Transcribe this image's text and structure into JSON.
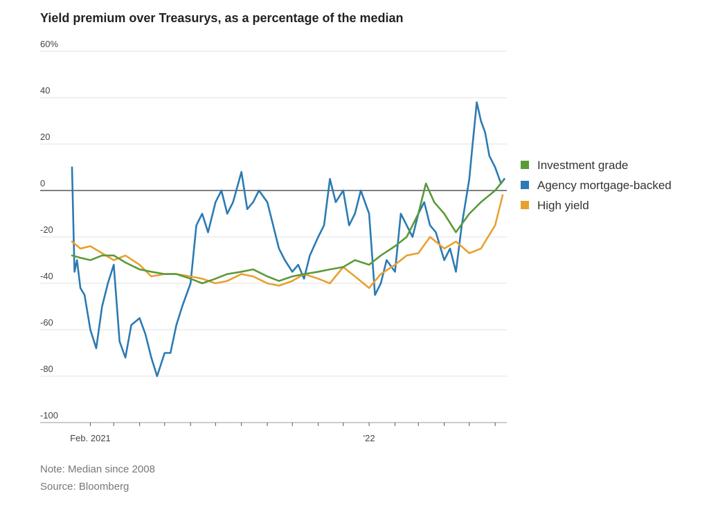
{
  "chart_data": {
    "type": "line",
    "title": "Yield premium over Treasurys, as a percentage of the median",
    "note": "Note: Median since 2008",
    "source": "Source: Bloomberg",
    "ylim": [
      -100,
      60
    ],
    "yticks": [
      {
        "value": 60,
        "label": "60%"
      },
      {
        "value": 40,
        "label": "40"
      },
      {
        "value": 20,
        "label": "20"
      },
      {
        "value": 0,
        "label": "0"
      },
      {
        "value": -20,
        "label": "-20"
      },
      {
        "value": -40,
        "label": "-40"
      },
      {
        "value": -60,
        "label": "-60"
      },
      {
        "value": -80,
        "label": "-80"
      },
      {
        "value": -100,
        "label": "-100"
      }
    ],
    "xlim": [
      "2021-01-10",
      "2022-06-15"
    ],
    "xtick_labels": [
      {
        "date": "2021-02-01",
        "label": "Feb. 2021"
      },
      {
        "date": "2022-01-01",
        "label": "'22"
      }
    ],
    "xtick_marks": [
      "2021-02-01",
      "2021-03-01",
      "2021-04-01",
      "2021-05-01",
      "2021-06-01",
      "2021-07-01",
      "2021-08-01",
      "2021-09-01",
      "2021-10-01",
      "2021-11-01",
      "2021-12-01",
      "2022-01-01",
      "2022-02-01",
      "2022-03-01",
      "2022-04-01",
      "2022-05-01",
      "2022-06-01"
    ],
    "grid": true,
    "legend_position": "right",
    "series": [
      {
        "name": "Investment grade",
        "color": "#5a9a3a",
        "x": [
          "2021-01-10",
          "2021-01-20",
          "2021-02-01",
          "2021-02-15",
          "2021-03-01",
          "2021-03-15",
          "2021-04-01",
          "2021-04-15",
          "2021-05-01",
          "2021-05-15",
          "2021-06-01",
          "2021-06-15",
          "2021-07-01",
          "2021-07-15",
          "2021-08-01",
          "2021-08-15",
          "2021-09-01",
          "2021-09-15",
          "2021-10-01",
          "2021-10-15",
          "2021-11-01",
          "2021-11-15",
          "2021-12-01",
          "2021-12-15",
          "2022-01-01",
          "2022-01-15",
          "2022-02-01",
          "2022-02-15",
          "2022-03-01",
          "2022-03-10",
          "2022-03-20",
          "2022-04-01",
          "2022-04-15",
          "2022-05-01",
          "2022-05-15",
          "2022-06-01",
          "2022-06-10"
        ],
        "values": [
          -28,
          -29,
          -30,
          -28,
          -28,
          -31,
          -34,
          -35,
          -36,
          -36,
          -38,
          -40,
          -38,
          -36,
          -35,
          -34,
          -37,
          -39,
          -37,
          -36,
          -35,
          -34,
          -33,
          -30,
          -32,
          -28,
          -24,
          -20,
          -10,
          3,
          -5,
          -10,
          -18,
          -10,
          -5,
          0,
          4
        ]
      },
      {
        "name": "Agency mortgage-backed",
        "color": "#2b7ab3",
        "x": [
          "2021-01-10",
          "2021-01-13",
          "2021-01-16",
          "2021-01-20",
          "2021-01-25",
          "2021-02-01",
          "2021-02-08",
          "2021-02-15",
          "2021-02-22",
          "2021-03-01",
          "2021-03-08",
          "2021-03-15",
          "2021-03-22",
          "2021-04-01",
          "2021-04-08",
          "2021-04-15",
          "2021-04-22",
          "2021-05-01",
          "2021-05-08",
          "2021-05-15",
          "2021-05-22",
          "2021-06-01",
          "2021-06-08",
          "2021-06-15",
          "2021-06-22",
          "2021-07-01",
          "2021-07-08",
          "2021-07-15",
          "2021-07-22",
          "2021-08-01",
          "2021-08-08",
          "2021-08-15",
          "2021-08-22",
          "2021-09-01",
          "2021-09-08",
          "2021-09-15",
          "2021-09-22",
          "2021-10-01",
          "2021-10-08",
          "2021-10-15",
          "2021-10-22",
          "2021-11-01",
          "2021-11-08",
          "2021-11-15",
          "2021-11-22",
          "2021-12-01",
          "2021-12-08",
          "2021-12-15",
          "2021-12-22",
          "2022-01-01",
          "2022-01-08",
          "2022-01-15",
          "2022-01-22",
          "2022-02-01",
          "2022-02-08",
          "2022-02-15",
          "2022-02-22",
          "2022-03-01",
          "2022-03-08",
          "2022-03-15",
          "2022-03-22",
          "2022-04-01",
          "2022-04-08",
          "2022-04-15",
          "2022-04-22",
          "2022-05-01",
          "2022-05-05",
          "2022-05-10",
          "2022-05-15",
          "2022-05-20",
          "2022-05-25",
          "2022-06-01",
          "2022-06-08",
          "2022-06-12"
        ],
        "values": [
          10,
          -35,
          -30,
          -42,
          -45,
          -60,
          -68,
          -50,
          -40,
          -32,
          -65,
          -72,
          -58,
          -55,
          -62,
          -72,
          -80,
          -70,
          -70,
          -58,
          -50,
          -40,
          -15,
          -10,
          -18,
          -5,
          0,
          -10,
          -5,
          8,
          -8,
          -5,
          0,
          -5,
          -15,
          -25,
          -30,
          -35,
          -32,
          -38,
          -28,
          -20,
          -15,
          5,
          -5,
          0,
          -15,
          -10,
          0,
          -10,
          -45,
          -40,
          -30,
          -35,
          -10,
          -15,
          -20,
          -10,
          -5,
          -15,
          -18,
          -30,
          -25,
          -35,
          -15,
          5,
          20,
          38,
          30,
          25,
          15,
          10,
          3,
          5
        ]
      },
      {
        "name": "High yield",
        "color": "#e8a02f",
        "x": [
          "2021-01-10",
          "2021-01-20",
          "2021-02-01",
          "2021-02-15",
          "2021-03-01",
          "2021-03-15",
          "2021-04-01",
          "2021-04-15",
          "2021-05-01",
          "2021-05-15",
          "2021-06-01",
          "2021-06-15",
          "2021-07-01",
          "2021-07-15",
          "2021-08-01",
          "2021-08-15",
          "2021-09-01",
          "2021-09-15",
          "2021-10-01",
          "2021-10-15",
          "2021-11-01",
          "2021-11-15",
          "2021-12-01",
          "2021-12-15",
          "2022-01-01",
          "2022-01-15",
          "2022-02-01",
          "2022-02-15",
          "2022-03-01",
          "2022-03-15",
          "2022-04-01",
          "2022-04-15",
          "2022-05-01",
          "2022-05-15",
          "2022-06-01",
          "2022-06-10"
        ],
        "values": [
          -22,
          -25,
          -24,
          -27,
          -30,
          -28,
          -32,
          -37,
          -36,
          -36,
          -37,
          -38,
          -40,
          -39,
          -36,
          -37,
          -40,
          -41,
          -39,
          -36,
          -38,
          -40,
          -33,
          -37,
          -42,
          -36,
          -32,
          -28,
          -27,
          -20,
          -25,
          -22,
          -27,
          -25,
          -15,
          -2
        ]
      }
    ]
  }
}
